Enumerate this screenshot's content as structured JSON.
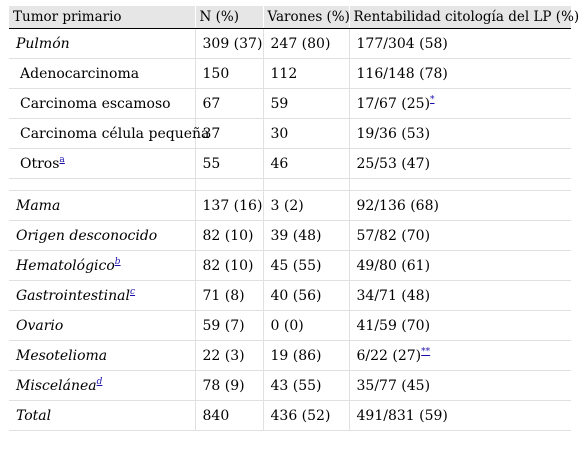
{
  "header": {
    "col1": "Tumor primario",
    "col2": "N (%)",
    "col3": "Varones (%)",
    "col4": "Rentabilidad citología del LP (%)"
  },
  "rows": [
    {
      "kind": "group",
      "label": "Pulmón",
      "note": "",
      "n": "309 (37)",
      "varones": "247 (80)",
      "rent": "177/304 (58)",
      "rent_note": ""
    },
    {
      "kind": "sub",
      "label": "Adenocarcinoma",
      "note": "",
      "n": "150",
      "varones": "112",
      "rent": "116/148 (78)",
      "rent_note": ""
    },
    {
      "kind": "sub",
      "label": "Carcinoma escamoso",
      "note": "",
      "n": "67",
      "varones": "59",
      "rent": "17/67 (25)",
      "rent_note": "*"
    },
    {
      "kind": "sub",
      "label": "Carcinoma célula pequeña",
      "note": "",
      "n": "37",
      "varones": "30",
      "rent": "19/36 (53)",
      "rent_note": ""
    },
    {
      "kind": "sub",
      "label": "Otros",
      "note": "a",
      "n": "55",
      "varones": "46",
      "rent": "25/53 (47)",
      "rent_note": ""
    },
    {
      "kind": "spacer"
    },
    {
      "kind": "group",
      "label": "Mama",
      "note": "",
      "n": "137 (16)",
      "varones": "3 (2)",
      "rent": "92/136 (68)",
      "rent_note": ""
    },
    {
      "kind": "group",
      "label": "Origen desconocido",
      "note": "",
      "n": "82 (10)",
      "varones": "39 (48)",
      "rent": "57/82 (70)",
      "rent_note": ""
    },
    {
      "kind": "group",
      "label": "Hematológico",
      "note": "b",
      "n": "82 (10)",
      "varones": "45 (55)",
      "rent": "49/80 (61)",
      "rent_note": ""
    },
    {
      "kind": "group",
      "label": "Gastrointestinal",
      "note": "c",
      "n": "71 (8)",
      "varones": "40 (56)",
      "rent": "34/71 (48)",
      "rent_note": ""
    },
    {
      "kind": "group",
      "label": "Ovario",
      "note": "",
      "n": "59 (7)",
      "varones": "0 (0)",
      "rent": "41/59 (70)",
      "rent_note": ""
    },
    {
      "kind": "group",
      "label": "Mesotelioma",
      "note": "",
      "n": "22 (3)",
      "varones": "19 (86)",
      "rent": "6/22 (27)",
      "rent_note": "**"
    },
    {
      "kind": "group",
      "label": "Miscelánea",
      "note": "d",
      "n": "78 (9)",
      "varones": "43 (55)",
      "rent": "35/77 (45)",
      "rent_note": ""
    },
    {
      "kind": "group",
      "label": "Total",
      "note": "",
      "n": "840",
      "varones": "436 (52)",
      "rent": "491/831 (59)",
      "rent_note": ""
    }
  ]
}
